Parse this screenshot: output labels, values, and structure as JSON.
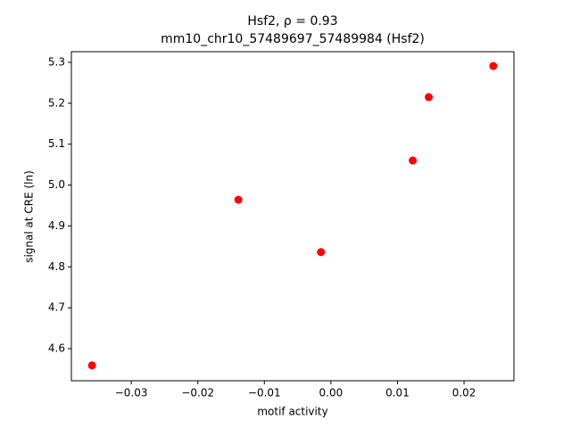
{
  "chart_data": {
    "type": "scatter",
    "title": "Hsf2, ρ = 0.93",
    "subtitle": "mm10_chr10_57489697_57489984 (Hsf2)",
    "x_label": "motif activity",
    "y_label": "signal at CRE (ln)",
    "x": [
      -0.0359,
      -0.0139,
      -0.0015,
      0.0123,
      0.0147,
      0.0244
    ],
    "values": [
      4.559,
      4.964,
      4.836,
      5.06,
      5.215,
      5.291
    ],
    "color": "#ff0000",
    "xlim": [
      -0.039,
      0.0275
    ],
    "ylim": [
      4.5215,
      5.326
    ],
    "xticks": [
      {
        "value": -0.03,
        "label": "−0.03"
      },
      {
        "value": -0.02,
        "label": "−0.02"
      },
      {
        "value": -0.01,
        "label": "−0.01"
      },
      {
        "value": 0,
        "label": "0.00"
      },
      0.01,
      0.02
    ],
    "yticks": [
      4.6,
      4.7,
      4.8,
      4.9,
      {
        "value": 5.0,
        "label": "5.0"
      },
      5.1,
      5.2,
      5.3
    ]
  }
}
